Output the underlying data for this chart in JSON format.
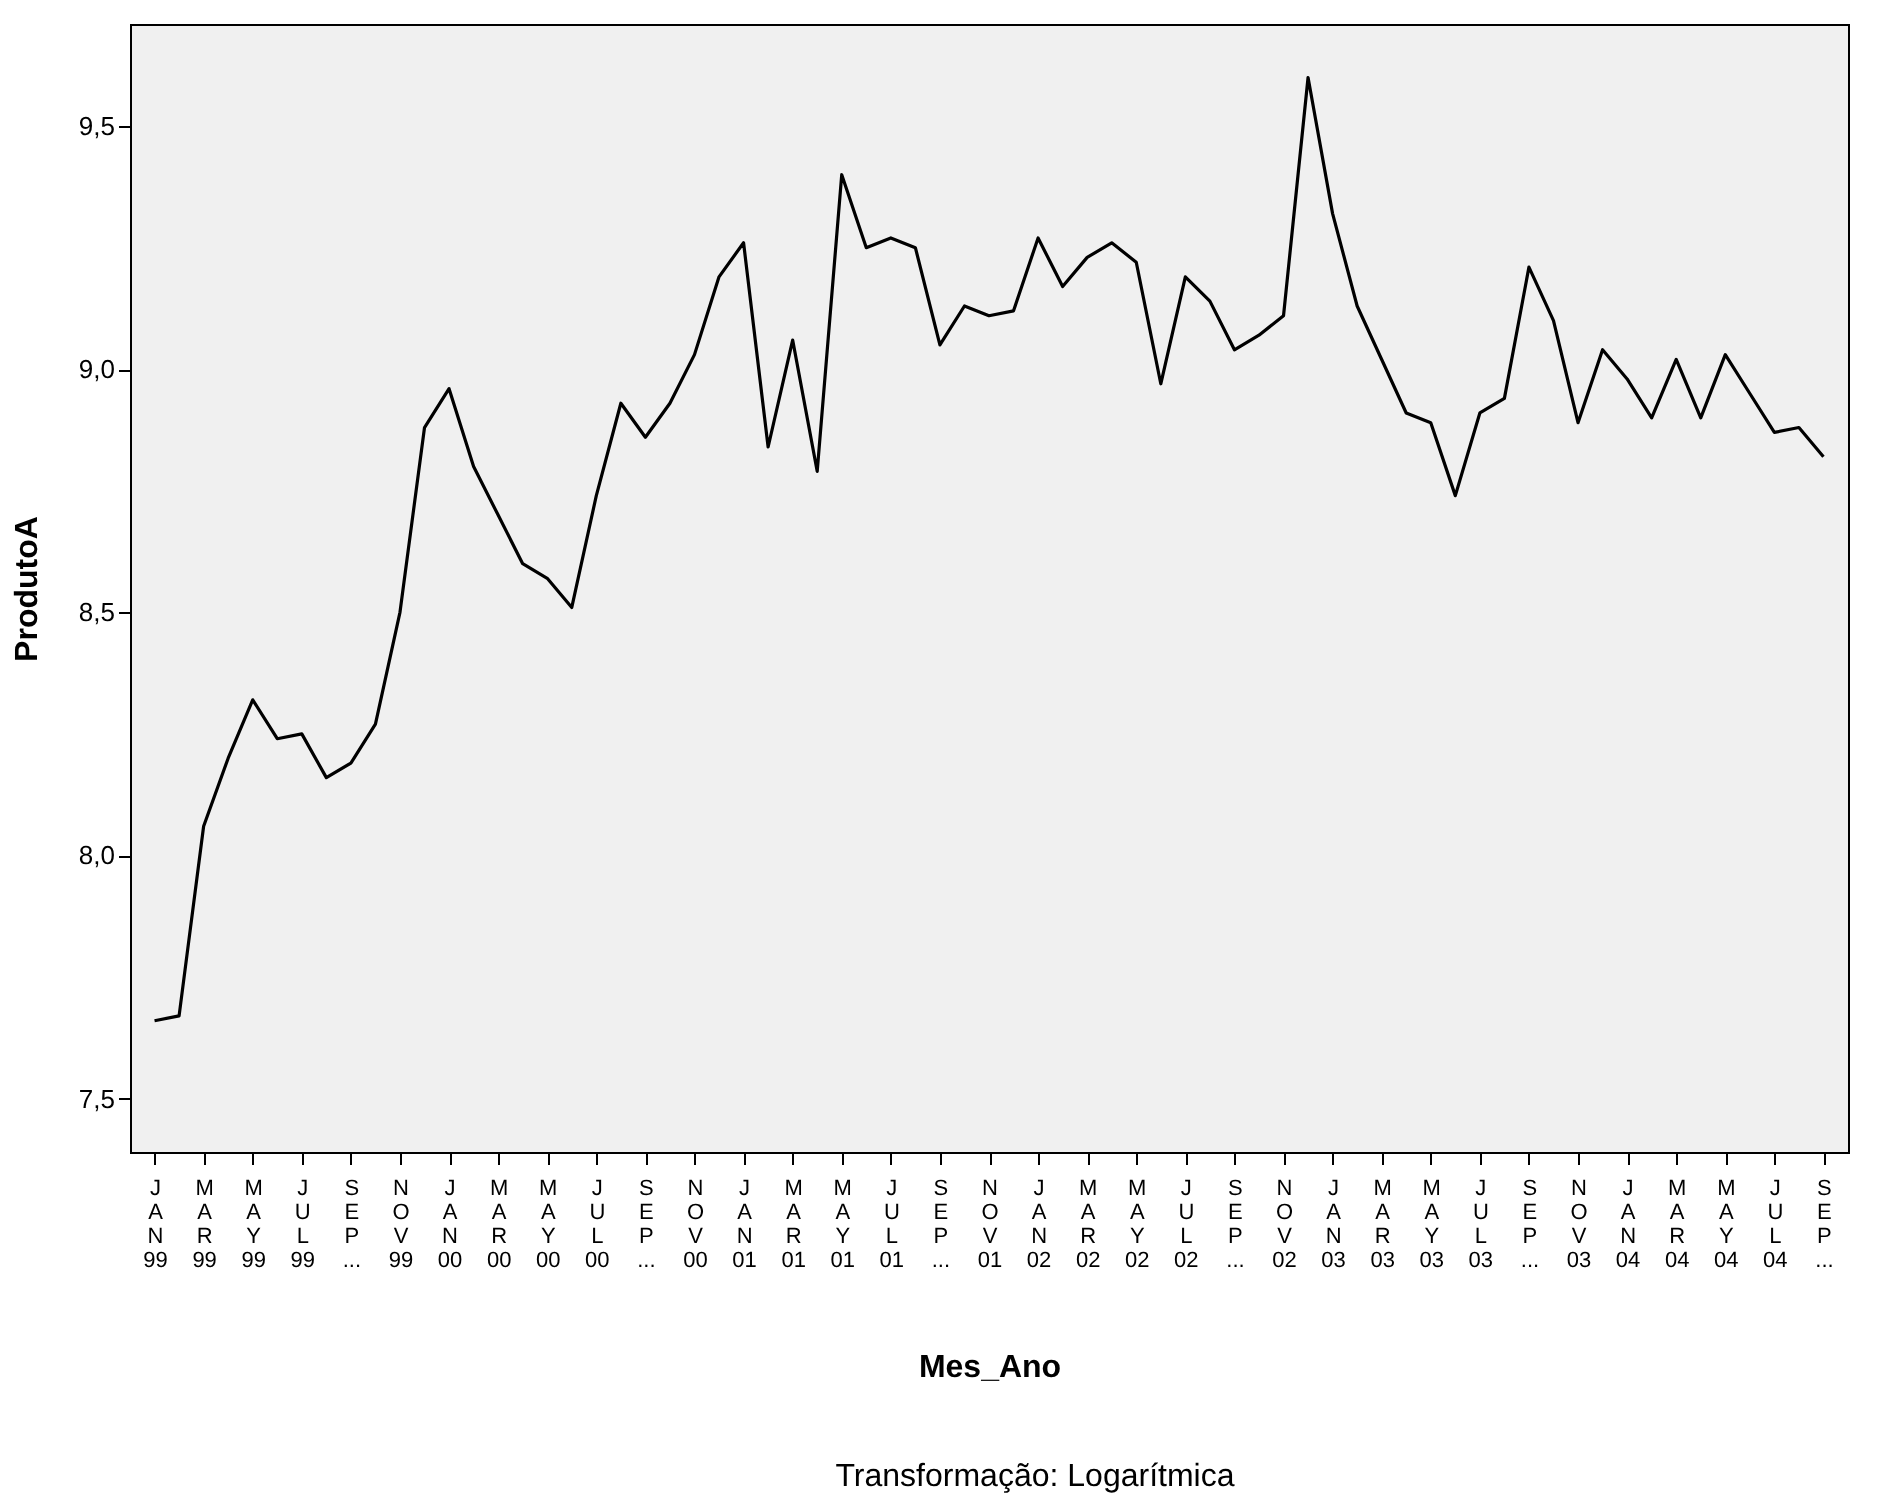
{
  "chart_data": {
    "type": "line",
    "xlabel": "Mes_Ano",
    "ylabel": "ProdutoA",
    "annotations": [
      "Transformação: Logarítmica"
    ],
    "categories": [
      "JAN 99",
      null,
      "MAR 99",
      null,
      "MAY 99",
      null,
      "JUL 99",
      null,
      "SEP ...",
      null,
      "NOV 99",
      null,
      "JAN 00",
      null,
      "MAR 00",
      null,
      "MAY 00",
      null,
      "JUL 00",
      null,
      "SEP ...",
      null,
      "NOV 00",
      null,
      "JAN 01",
      null,
      "MAR 01",
      null,
      "MAY 01",
      null,
      "JUL 01",
      null,
      "SEP ...",
      null,
      "NOV 01",
      null,
      "JAN 02",
      null,
      "MAR 02",
      null,
      "MAY 02",
      null,
      "JUL 02",
      null,
      "SEP ...",
      null,
      "NOV 02",
      null,
      "JAN 03",
      null,
      "MAR 03",
      null,
      "MAY 03",
      null,
      "JUL 03",
      null,
      "SEP ...",
      null,
      "NOV 03",
      null,
      "JAN 04",
      null,
      "MAR 04",
      null,
      "MAY 04",
      null,
      "JUL 04",
      null,
      "SEP ..."
    ],
    "series": [
      {
        "color": "#000000",
        "values": [
          7.66,
          7.67,
          8.06,
          8.2,
          8.32,
          8.24,
          8.25,
          8.16,
          8.19,
          8.27,
          8.5,
          8.88,
          8.96,
          8.8,
          8.7,
          8.6,
          8.57,
          8.51,
          8.74,
          8.93,
          8.86,
          8.93,
          9.03,
          9.19,
          9.26,
          8.84,
          9.06,
          8.79,
          9.4,
          9.25,
          9.27,
          9.25,
          9.05,
          9.13,
          9.11,
          9.12,
          9.27,
          9.17,
          9.23,
          9.26,
          9.22,
          8.97,
          9.19,
          9.14,
          9.04,
          9.07,
          9.11,
          9.6,
          9.32,
          9.13,
          9.02,
          8.91,
          8.89,
          8.74,
          8.91,
          8.94,
          9.21,
          9.1,
          8.89,
          9.04,
          8.98,
          8.9,
          9.02,
          8.9,
          9.03,
          8.95,
          8.87,
          8.88,
          8.82
        ]
      }
    ],
    "ylim": [
      7.39,
      9.71
    ],
    "yticks": [
      {
        "value": 7.5,
        "label": "7,5"
      },
      {
        "value": 8.0,
        "label": "8,0"
      },
      {
        "value": 8.5,
        "label": "8,5"
      },
      {
        "value": 9.0,
        "label": "9,0"
      },
      {
        "value": 9.5,
        "label": "9,5"
      }
    ],
    "grid": false,
    "line_style": "solid",
    "marker": "none"
  }
}
